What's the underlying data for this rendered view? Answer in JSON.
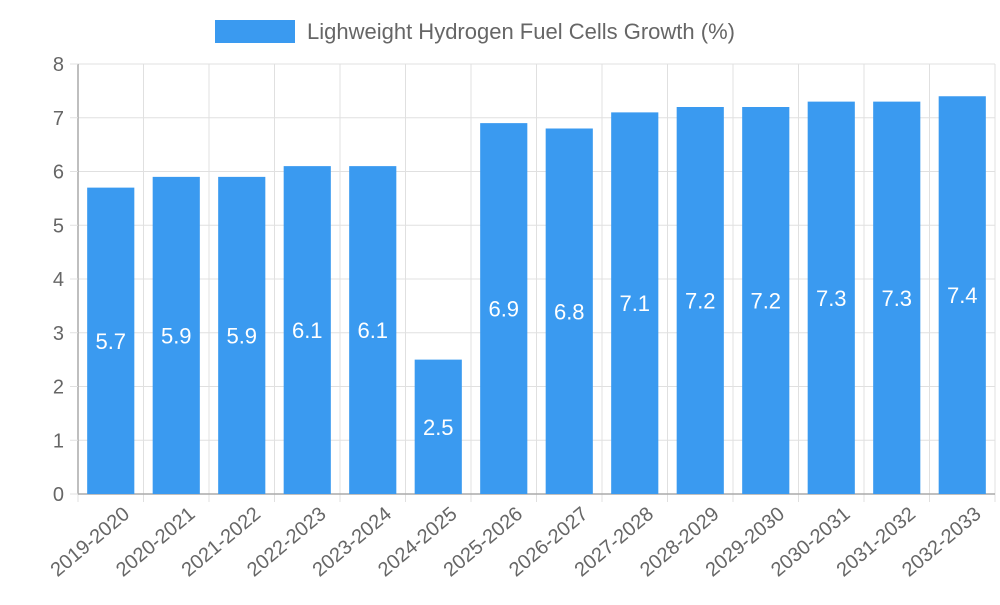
{
  "colors": {
    "bar": "#3a9af0",
    "grid": "#e0e0e0",
    "axis": "#aaaaaa",
    "text": "#666666",
    "label": "#ffffff"
  },
  "chart_data": {
    "type": "bar",
    "title": "",
    "xlabel": "",
    "ylabel": "",
    "legend": "top-center",
    "grid": true,
    "ylim": [
      0,
      8
    ],
    "yticks": [
      0,
      1,
      2,
      3,
      4,
      5,
      6,
      7,
      8
    ],
    "categories": [
      "2019-2020",
      "2020-2021",
      "2021-2022",
      "2022-2023",
      "2023-2024",
      "2024-2025",
      "2025-2026",
      "2026-2027",
      "2027-2028",
      "2028-2029",
      "2029-2030",
      "2030-2031",
      "2031-2032",
      "2032-2033"
    ],
    "series": [
      {
        "name": "Lighweight Hydrogen Fuel Cells Growth (%)",
        "values": [
          5.7,
          5.9,
          5.9,
          6.1,
          6.1,
          2.5,
          6.9,
          6.8,
          7.1,
          7.2,
          7.2,
          7.3,
          7.3,
          7.4
        ]
      }
    ]
  }
}
